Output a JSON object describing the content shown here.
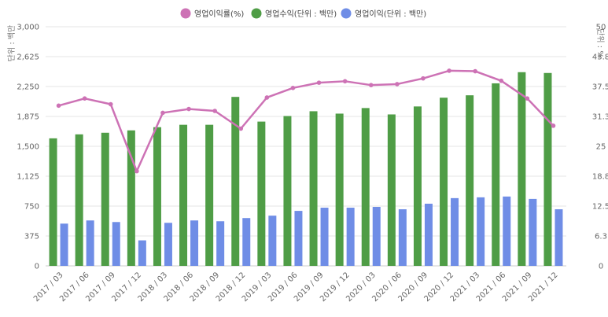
{
  "chart_data": {
    "type": "bar",
    "categories": [
      "2017 / 03",
      "2017 / 06",
      "2017 / 09",
      "2017 / 12",
      "2018 / 03",
      "2018 / 06",
      "2018 / 09",
      "2018 / 12",
      "2019 / 03",
      "2019 / 06",
      "2019 / 09",
      "2019 / 12",
      "2020 / 03",
      "2020 / 06",
      "2020 / 09",
      "2020 / 12",
      "2021 / 03",
      "2021 / 06",
      "2021 / 09",
      "2021 / 12"
    ],
    "y_left": {
      "label": "단위 : 백만",
      "ylim": [
        0,
        3000
      ],
      "ticks": [
        "3,000",
        "2,625",
        "2,250",
        "1,875",
        "1,500",
        "1,125",
        "750",
        "375",
        "0"
      ]
    },
    "y_right": {
      "label": "단위 : %",
      "ylim": [
        0,
        50
      ],
      "ticks": [
        "50",
        "43.8",
        "37.5",
        "31.3",
        "25",
        "18.8",
        "12.5",
        "6.3",
        "0"
      ]
    },
    "series": [
      {
        "name": "영업이익률(%)",
        "type": "line",
        "axis": "right",
        "color": "#cd72b5",
        "values": [
          33.5,
          35.0,
          33.8,
          19.8,
          32.0,
          32.8,
          32.4,
          28.7,
          35.2,
          37.2,
          38.3,
          38.6,
          37.8,
          38.0,
          39.2,
          40.8,
          40.7,
          38.7,
          35.0,
          29.3
        ]
      },
      {
        "name": "영업수익(단위 : 백만)",
        "type": "bar",
        "axis": "left",
        "color": "#4f9d46",
        "values": [
          1600,
          1650,
          1670,
          1700,
          1740,
          1770,
          1770,
          2120,
          1810,
          1880,
          1940,
          1910,
          1980,
          1900,
          2000,
          2110,
          2140,
          2290,
          2430,
          2420
        ]
      },
      {
        "name": "영업이익(단위 : 백만)",
        "type": "bar",
        "axis": "left",
        "color": "#6f8de6",
        "values": [
          530,
          570,
          550,
          320,
          540,
          570,
          560,
          600,
          630,
          690,
          730,
          730,
          740,
          710,
          780,
          850,
          860,
          870,
          840,
          710
        ]
      }
    ],
    "grid": true,
    "legend_position": "top-center"
  }
}
